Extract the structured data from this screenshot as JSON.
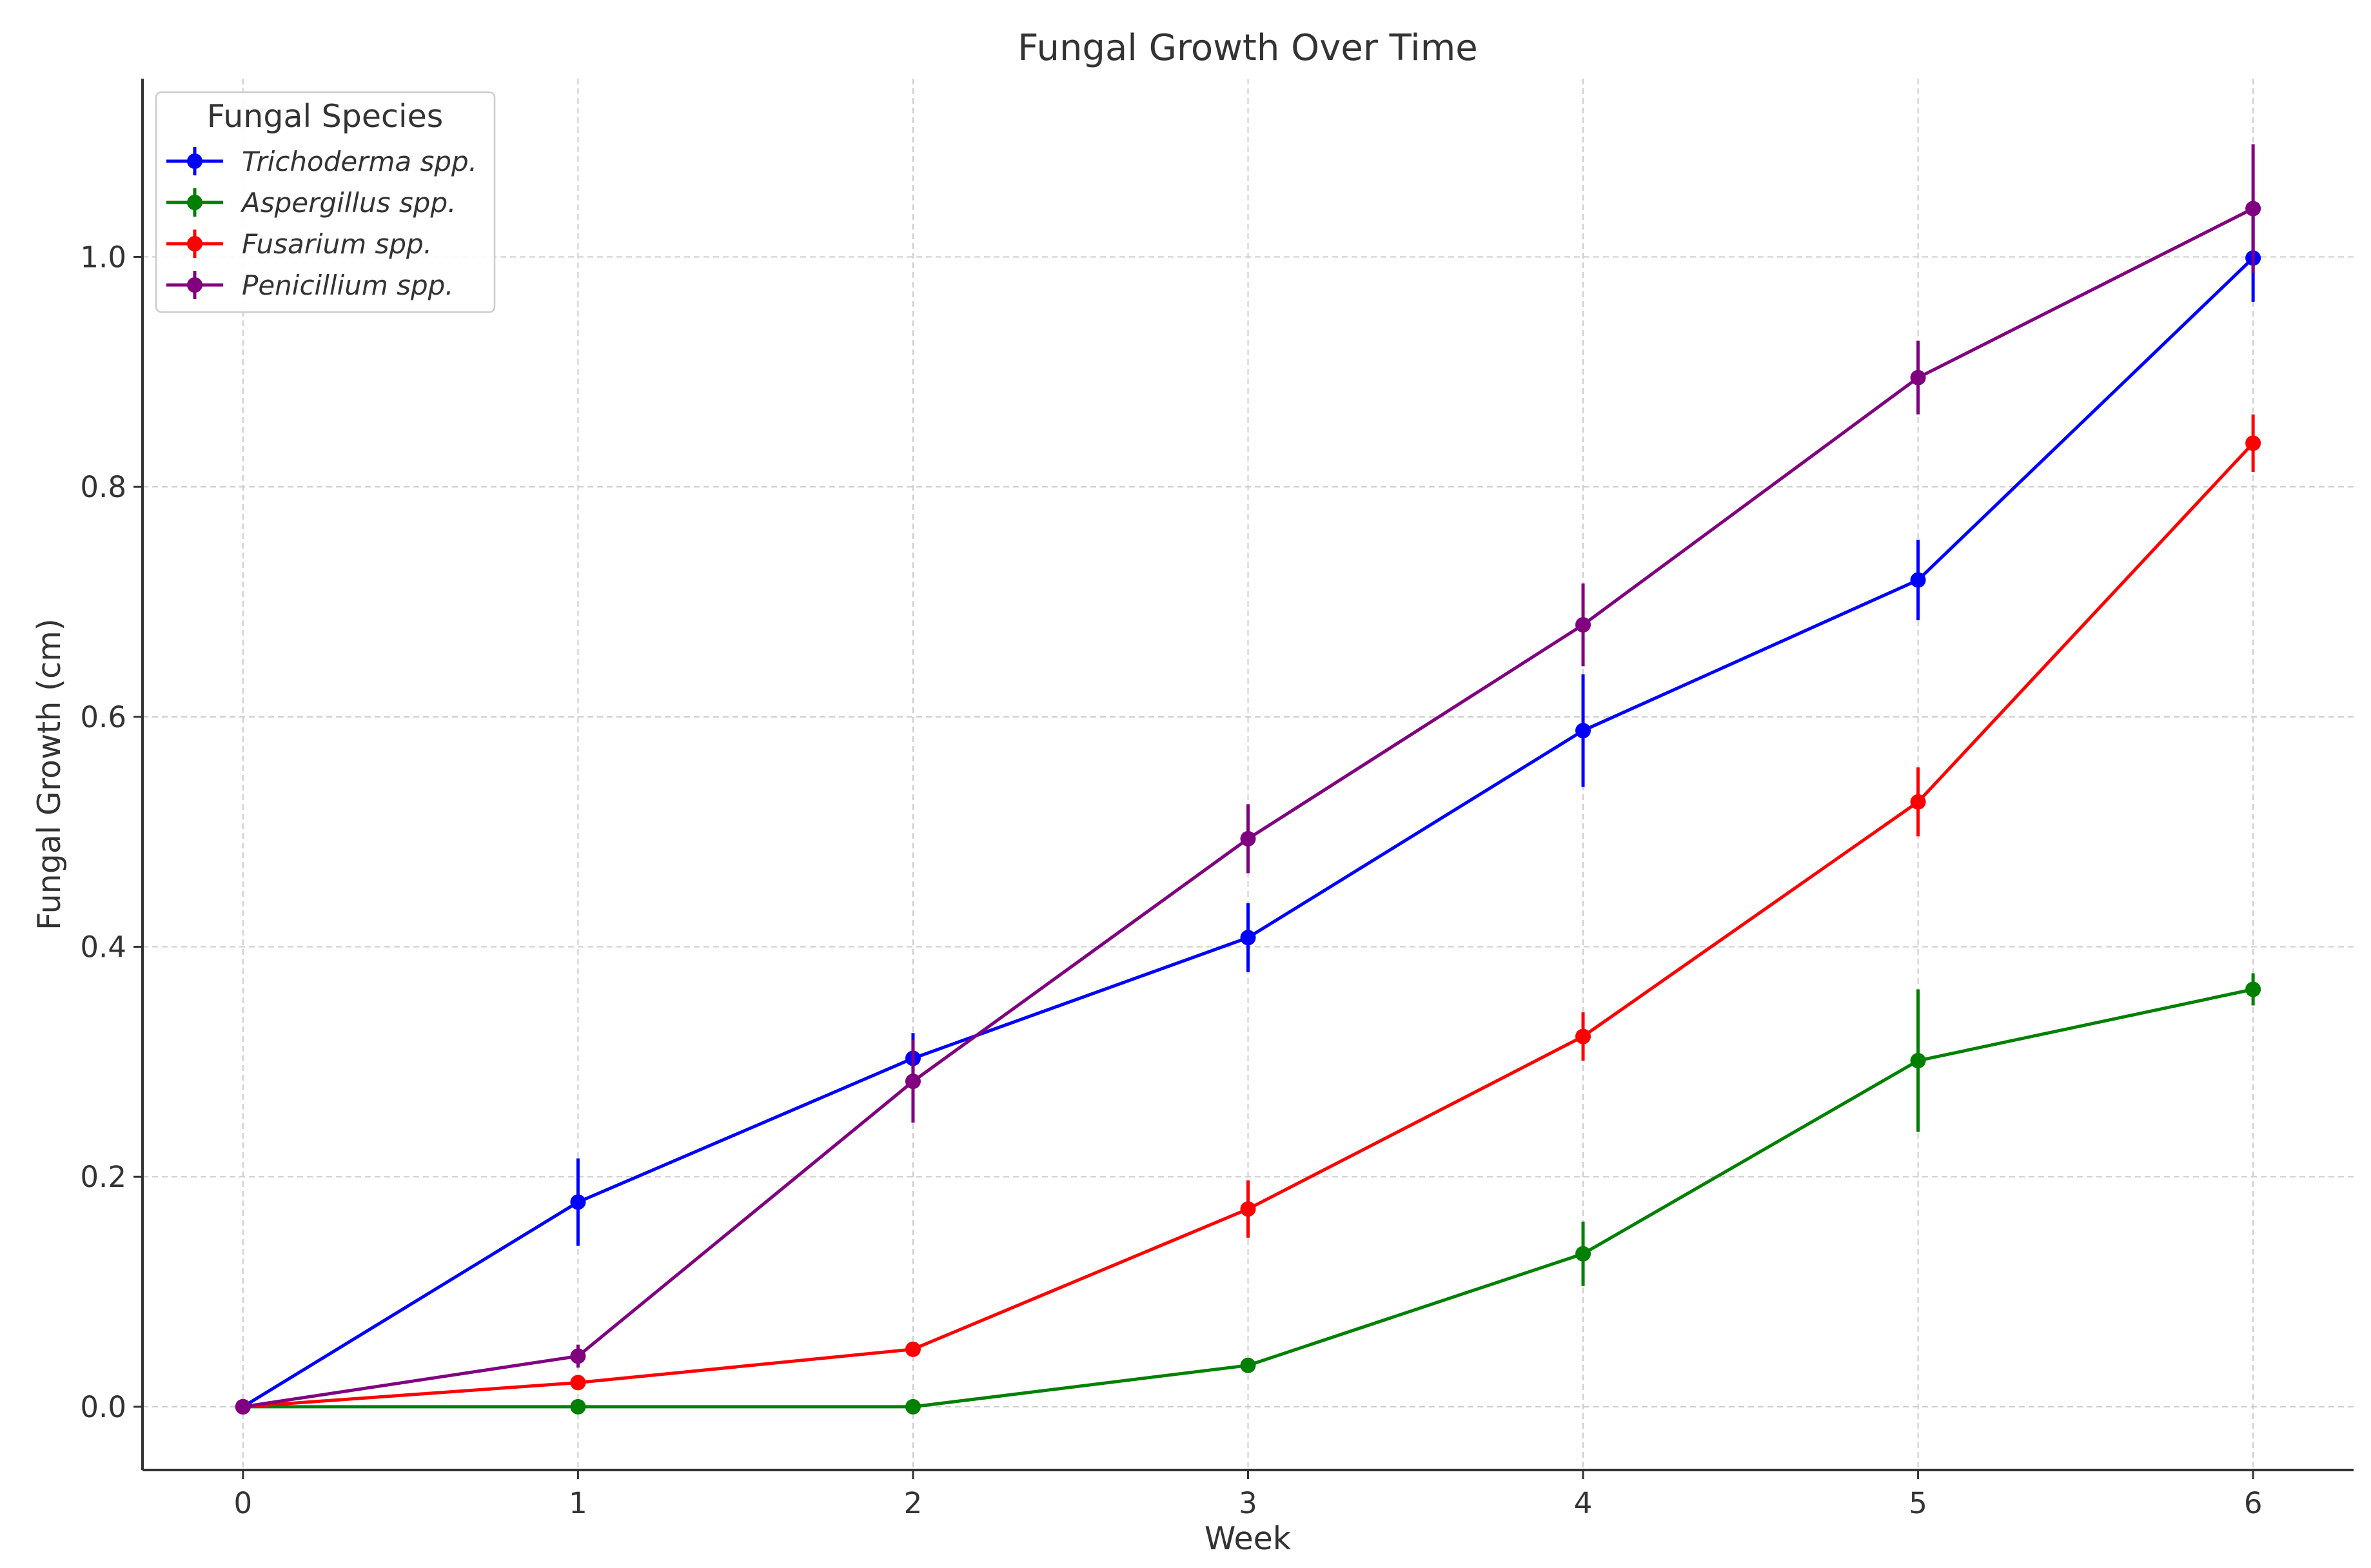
{
  "chart_data": {
    "type": "line",
    "title": "Fungal Growth Over Time",
    "xlabel": "Week",
    "ylabel": "Fungal Growth (cm)",
    "x": [
      0,
      1,
      2,
      3,
      4,
      5,
      6
    ],
    "xlim": [
      -0.3,
      6.3
    ],
    "ylim": [
      -0.055,
      1.155
    ],
    "xticks": [
      "0",
      "1",
      "2",
      "3",
      "4",
      "5",
      "6"
    ],
    "yticks": [
      "0.0",
      "0.2",
      "0.4",
      "0.6",
      "0.8",
      "1.0"
    ],
    "grid": true,
    "legend": {
      "title": "Fungal Species",
      "placement": "top-left"
    },
    "series": [
      {
        "name": "Trichoderma spp.",
        "color": "#0000ff",
        "values": [
          0.0,
          0.178,
          0.303,
          0.408,
          0.588,
          0.719,
          0.999
        ],
        "errors": [
          0.0,
          0.038,
          0.022,
          0.03,
          0.049,
          0.035,
          0.038
        ]
      },
      {
        "name": "Aspergillus spp.",
        "color": "#008000",
        "values": [
          0.0,
          0.0,
          0.0,
          0.036,
          0.133,
          0.301,
          0.363
        ],
        "errors": [
          0.0,
          0.0,
          0.0,
          0.0,
          0.028,
          0.062,
          0.014
        ]
      },
      {
        "name": "Fusarium spp.",
        "color": "#ff0000",
        "values": [
          0.0,
          0.021,
          0.05,
          0.172,
          0.322,
          0.526,
          0.838
        ],
        "errors": [
          0.0,
          0.0,
          0.0,
          0.025,
          0.021,
          0.03,
          0.025
        ]
      },
      {
        "name": "Penicillium spp.",
        "color": "#800080",
        "values": [
          0.0,
          0.044,
          0.283,
          0.494,
          0.68,
          0.895,
          1.042
        ],
        "errors": [
          0.0,
          0.01,
          0.036,
          0.03,
          0.036,
          0.032,
          0.056
        ]
      }
    ]
  }
}
